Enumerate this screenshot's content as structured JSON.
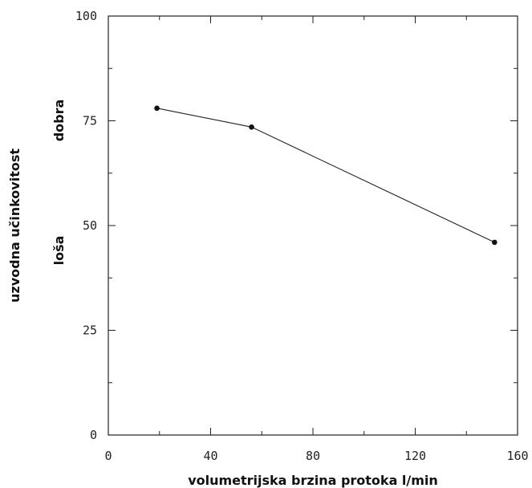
{
  "chart_data": {
    "type": "line",
    "title": "",
    "xlabel": "volumetrijska brzina protoka l/min",
    "ylabel": "uzvodna učinkovitost",
    "xlim": [
      0,
      160
    ],
    "ylim": [
      0,
      100
    ],
    "xticks": [
      "0",
      "40",
      "80",
      "120",
      "160"
    ],
    "yticks": [
      "0",
      "25",
      "50",
      "75",
      "100"
    ],
    "series": [
      {
        "x": [
          19,
          56,
          151
        ],
        "y": [
          78,
          73.5,
          46
        ]
      }
    ],
    "annotations": {
      "good": "dobra",
      "bad": "loša"
    },
    "grid": false
  }
}
